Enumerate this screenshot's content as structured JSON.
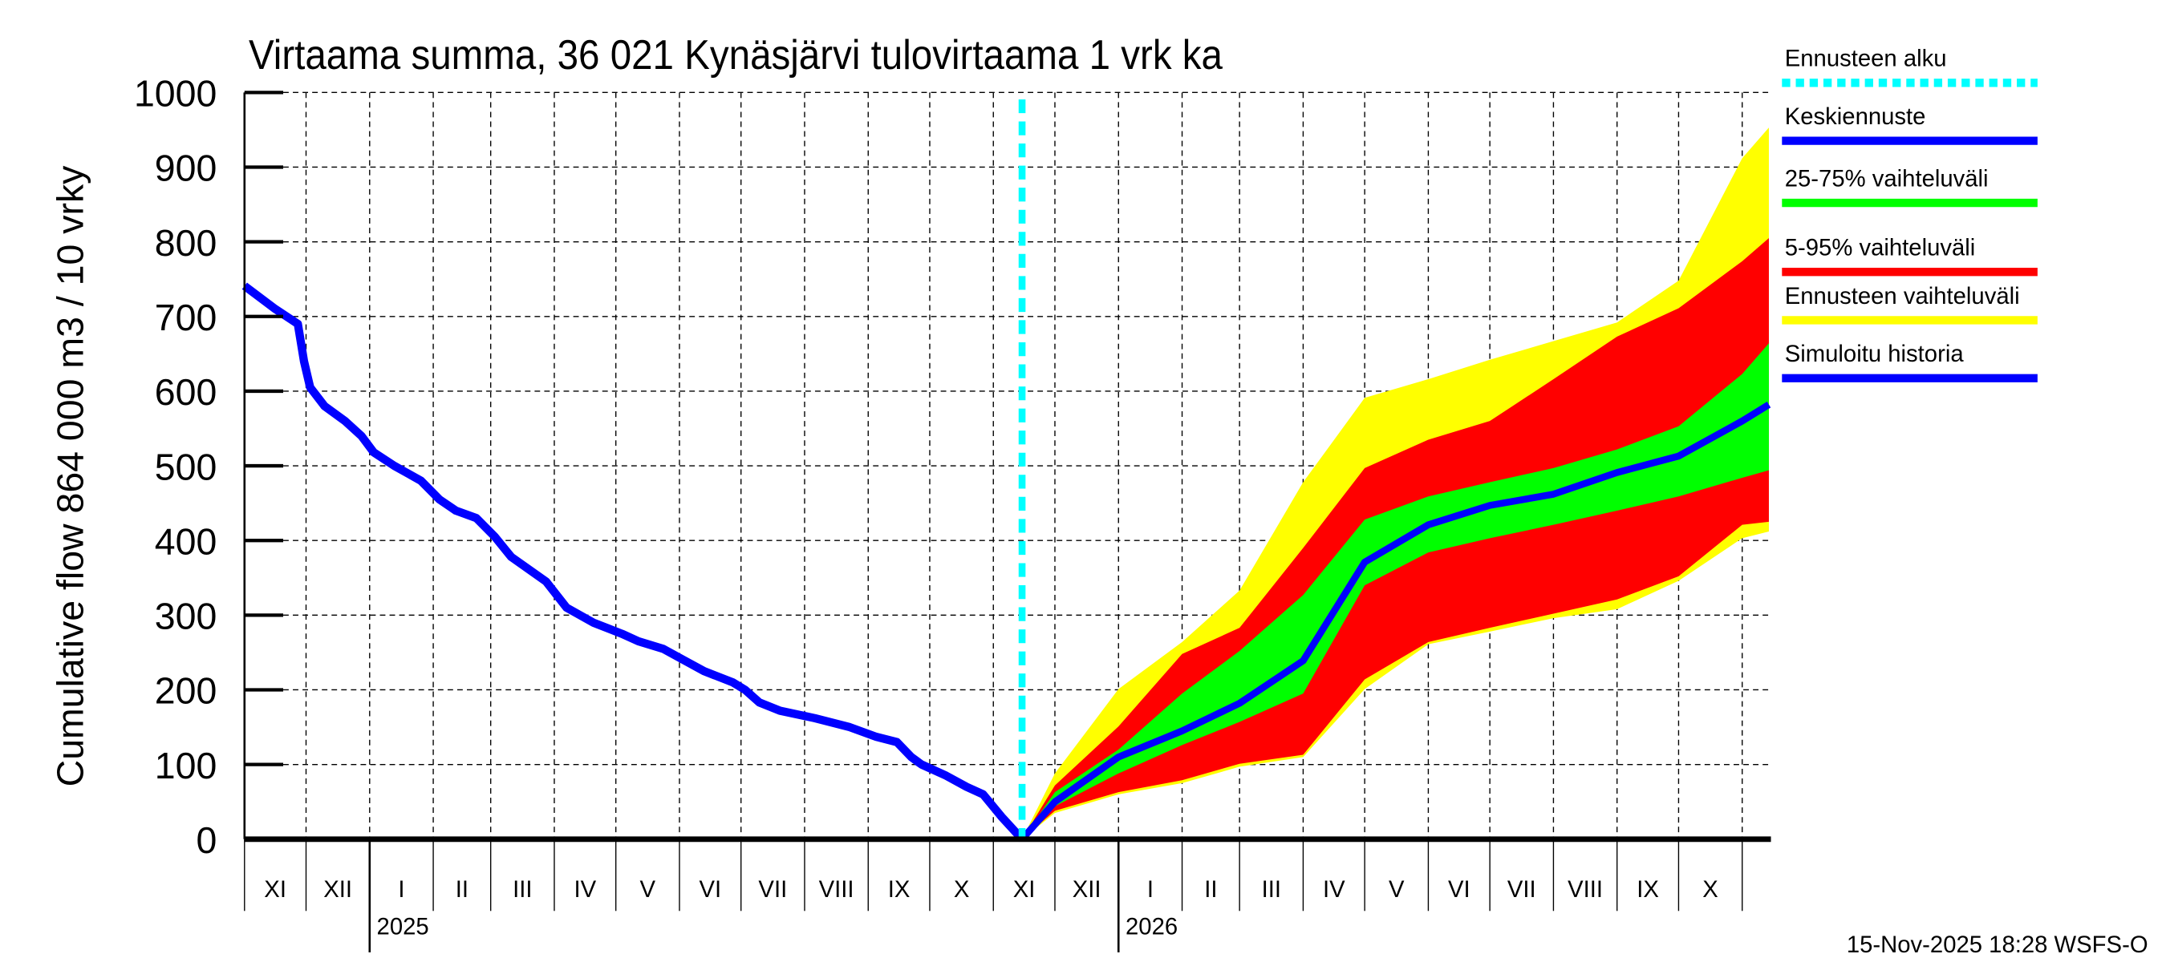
{
  "chart_data": {
    "type": "area",
    "title": "Virtaama summa, 36 021 Kynäsjärvi tulovirtaama 1 vrk ka",
    "ylabel": "Cumulative flow    864 000 m3 / 10 vrky",
    "ylim": [
      0,
      1000
    ],
    "yticks": [
      "0",
      "100",
      "200",
      "300",
      "400",
      "500",
      "600",
      "700",
      "800",
      "900",
      "1000"
    ],
    "xlim": [
      "2024-11-01",
      "2026-11-15"
    ],
    "month_labels": [
      "XI",
      "XII",
      "I",
      "II",
      "III",
      "IV",
      "V",
      "VI",
      "VII",
      "VIII",
      "IX",
      "X",
      "XI",
      "XII",
      "I",
      "II",
      "III",
      "IV",
      "V",
      "VI",
      "VII",
      "VIII",
      "IX",
      "X"
    ],
    "year_labels": [
      "2025",
      "2026"
    ],
    "grid": true,
    "legend_position": "right",
    "forecast_start": "2025-11-15",
    "colors": {
      "forecast_start": "#00ffff",
      "mean": "#0000ff",
      "p25_75": "#00ff00",
      "p5_95": "#ff0000",
      "range": "#ffff00",
      "history": "#0000ff"
    },
    "legend": [
      {
        "key": "forecast_start",
        "label": "Ennusteen alku"
      },
      {
        "key": "mean",
        "label": "Keskiennuste"
      },
      {
        "key": "p25_75",
        "label": "25-75% vaihteluväli"
      },
      {
        "key": "p5_95",
        "label": "5-95% vaihteluväli"
      },
      {
        "key": "range",
        "label": "Ennusteen vaihteluväli"
      },
      {
        "key": "history",
        "label": "Simuloitu historia"
      }
    ],
    "history": {
      "dates": [
        "2024-11-01",
        "2024-11-16",
        "2024-11-27",
        "2024-11-30",
        "2024-12-03",
        "2024-12-10",
        "2024-12-20",
        "2024-12-28",
        "2025-01-03",
        "2025-01-13",
        "2025-01-26",
        "2025-02-04",
        "2025-02-12",
        "2025-02-22",
        "2025-03-03",
        "2025-03-11",
        "2025-03-28",
        "2025-04-07",
        "2025-04-20",
        "2025-05-04",
        "2025-05-12",
        "2025-05-24",
        "2025-06-03",
        "2025-06-13",
        "2025-06-27",
        "2025-07-03",
        "2025-07-10",
        "2025-07-20",
        "2025-08-06",
        "2025-08-23",
        "2025-09-05",
        "2025-09-15",
        "2025-09-22",
        "2025-09-27",
        "2025-10-09",
        "2025-10-19",
        "2025-10-27",
        "2025-11-05",
        "2025-11-15"
      ],
      "values": [
        741,
        710,
        690,
        640,
        605,
        580,
        560,
        540,
        518,
        500,
        480,
        455,
        440,
        430,
        405,
        378,
        345,
        310,
        290,
        275,
        265,
        255,
        240,
        225,
        210,
        200,
        183,
        172,
        162,
        150,
        137,
        130,
        110,
        100,
        85,
        70,
        60,
        30,
        0
      ]
    },
    "forecast": {
      "dates": [
        "2025-11-15",
        "2025-12-01",
        "2026-01-01",
        "2026-02-01",
        "2026-03-01",
        "2026-04-01",
        "2026-05-01",
        "2026-06-01",
        "2026-07-01",
        "2026-08-01",
        "2026-09-01",
        "2026-10-01",
        "2026-11-01",
        "2026-11-14"
      ],
      "max": [
        0,
        88,
        201,
        264,
        333,
        478,
        591,
        616,
        642,
        667,
        692,
        748,
        912,
        953
      ],
      "p95": [
        0,
        72,
        151,
        248,
        283,
        390,
        497,
        535,
        560,
        616,
        673,
        711,
        774,
        805
      ],
      "p75": [
        0,
        63,
        120,
        195,
        252,
        327,
        428,
        459,
        478,
        497,
        522,
        553,
        623,
        664
      ],
      "mean": [
        0,
        50,
        110,
        145,
        182,
        239,
        371,
        421,
        447,
        462,
        491,
        513,
        560,
        582
      ],
      "p25": [
        0,
        44,
        88,
        126,
        157,
        195,
        340,
        384,
        403,
        421,
        440,
        459,
        484,
        494
      ],
      "p5": [
        0,
        38,
        63,
        79,
        101,
        113,
        214,
        264,
        283,
        302,
        321,
        352,
        421,
        425
      ],
      "min": [
        0,
        35,
        60,
        75,
        97,
        110,
        201,
        261,
        278,
        296,
        308,
        346,
        403,
        412
      ]
    }
  },
  "footer": {
    "timestamp": "15-Nov-2025 18:28 WSFS-O"
  }
}
